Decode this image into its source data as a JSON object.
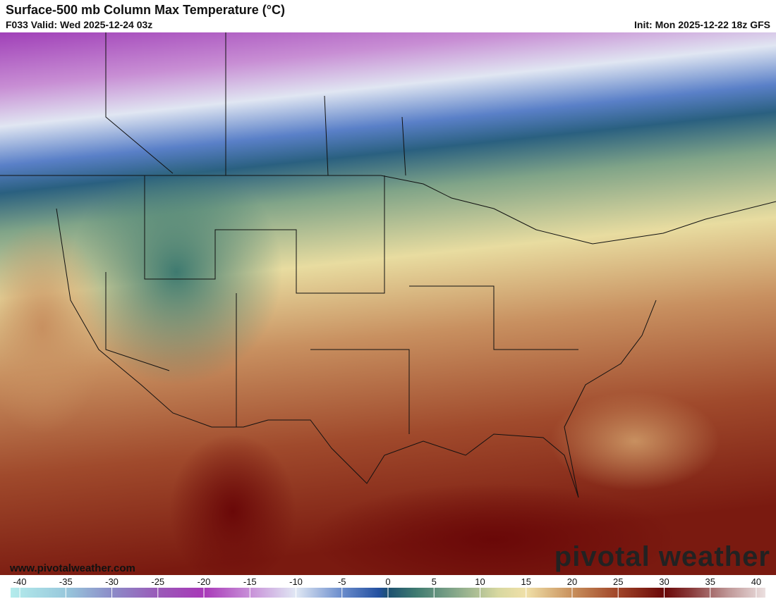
{
  "header": {
    "title": "Surface-500 mb Column Max Temperature (°C)",
    "valid": "F033 Valid: Wed 2025-12-24 03z",
    "init": "Init: Mon 2025-12-22 18z GFS"
  },
  "watermark": "www.pivotalweather.com",
  "logo": "pivotal weather",
  "colorbar": {
    "range": [
      -41,
      41
    ],
    "ticks": [
      -40,
      -35,
      -30,
      -25,
      -20,
      -15,
      -10,
      -5,
      0,
      5,
      10,
      15,
      20,
      25,
      30,
      35,
      40
    ],
    "stops": [
      {
        "value": -41,
        "color": "#b4ecec"
      },
      {
        "value": -35,
        "color": "#98c8dc"
      },
      {
        "value": -30,
        "color": "#8c8cc8"
      },
      {
        "value": -25,
        "color": "#9a5ab8"
      },
      {
        "value": -20,
        "color": "#a838b8"
      },
      {
        "value": -15,
        "color": "#c890d8"
      },
      {
        "value": -10,
        "color": "#e0e8f4"
      },
      {
        "value": -5,
        "color": "#6a8ccc"
      },
      {
        "value": -1,
        "color": "#2450a0"
      },
      {
        "value": 0,
        "color": "#1c5070"
      },
      {
        "value": 3,
        "color": "#3e7a70"
      },
      {
        "value": 7,
        "color": "#80a488"
      },
      {
        "value": 12,
        "color": "#d8d8a0"
      },
      {
        "value": 15,
        "color": "#f0e0a8"
      },
      {
        "value": 20,
        "color": "#c8905c"
      },
      {
        "value": 25,
        "color": "#a04428"
      },
      {
        "value": 30,
        "color": "#6a0808"
      },
      {
        "value": 33,
        "color": "#8a3c3c"
      },
      {
        "value": 37,
        "color": "#c09898"
      },
      {
        "value": 41,
        "color": "#ece0e0"
      }
    ]
  }
}
